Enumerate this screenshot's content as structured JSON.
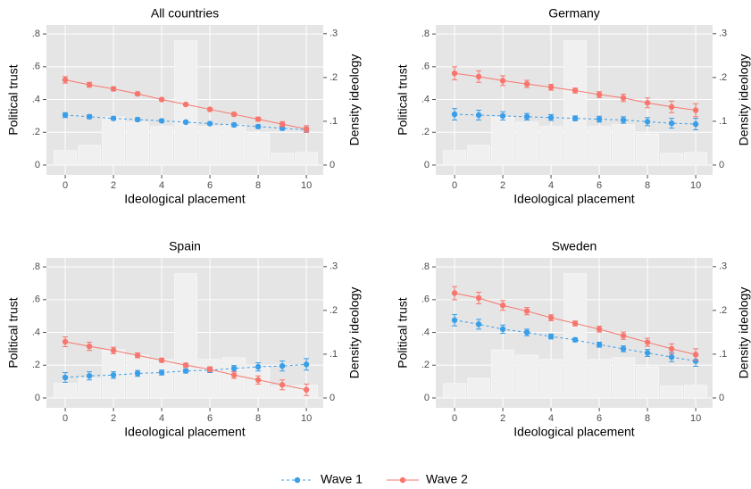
{
  "chart_data": [
    {
      "type": "line",
      "title": "All countries",
      "ylabel": "Political trust",
      "y2label": "Density ideology",
      "xlabel": "Ideological placement",
      "x": [
        0,
        1,
        2,
        3,
        4,
        5,
        6,
        7,
        8,
        9,
        10
      ],
      "xlim": [
        -0.78,
        10.7
      ],
      "xticks": [
        0,
        2,
        4,
        6,
        8,
        10
      ],
      "ylim": [
        -0.06,
        0.855
      ],
      "yticks": [
        0,
        {
          "value": 0.2,
          "label": ".2"
        },
        {
          "value": 0.4,
          "label": ".4"
        },
        {
          "value": 0.6,
          "label": ".6"
        },
        {
          "value": 0.8,
          "label": ".8"
        }
      ],
      "y2lim": [
        -0.0225,
        0.32
      ],
      "y2ticks": [
        0,
        {
          "value": 0.1,
          "label": ".1"
        },
        {
          "value": 0.2,
          "label": ".2"
        },
        {
          "value": 0.3,
          "label": ".3"
        }
      ],
      "grid": true,
      "density": {
        "axis": "y2",
        "color": "#f0f0f0",
        "bins": [
          -0.5,
          0.5,
          1.5,
          2.5,
          3.5,
          4.5,
          5.5,
          6.5,
          7.5,
          8.5,
          9.5,
          10.5
        ],
        "values": [
          0.033,
          0.045,
          0.11,
          0.098,
          0.088,
          0.284,
          0.088,
          0.092,
          0.071,
          0.027,
          0.029
        ]
      },
      "series": [
        {
          "name": "Wave 1",
          "color": "#3a9ee8",
          "dashed": true,
          "values": [
            0.305,
            0.295,
            0.285,
            0.278,
            0.27,
            0.262,
            0.253,
            0.245,
            0.235,
            0.225,
            0.215
          ],
          "errors": [
            0.015,
            0.012,
            0.01,
            0.01,
            0.008,
            0.007,
            0.008,
            0.01,
            0.01,
            0.012,
            0.015
          ]
        },
        {
          "name": "Wave 2",
          "color": "#f8766d",
          "dashed": false,
          "values": [
            0.52,
            0.49,
            0.465,
            0.435,
            0.4,
            0.37,
            0.34,
            0.31,
            0.28,
            0.25,
            0.22
          ],
          "errors": [
            0.02,
            0.015,
            0.012,
            0.01,
            0.008,
            0.007,
            0.008,
            0.01,
            0.012,
            0.015,
            0.02
          ]
        }
      ]
    },
    {
      "type": "line",
      "title": "Germany",
      "ylabel": "Political trust",
      "y2label": "Density ideology",
      "xlabel": "Ideological placement",
      "x": [
        0,
        1,
        2,
        3,
        4,
        5,
        6,
        7,
        8,
        9,
        10
      ],
      "xlim": [
        -0.78,
        10.7
      ],
      "xticks": [
        0,
        2,
        4,
        6,
        8,
        10
      ],
      "ylim": [
        -0.06,
        0.855
      ],
      "yticks": [
        0,
        {
          "value": 0.2,
          "label": ".2"
        },
        {
          "value": 0.4,
          "label": ".4"
        },
        {
          "value": 0.6,
          "label": ".6"
        },
        {
          "value": 0.8,
          "label": ".8"
        }
      ],
      "y2lim": [
        -0.0225,
        0.32
      ],
      "y2ticks": [
        0,
        {
          "value": 0.1,
          "label": ".1"
        },
        {
          "value": 0.2,
          "label": ".2"
        },
        {
          "value": 0.3,
          "label": ".3"
        }
      ],
      "grid": true,
      "density": {
        "axis": "y2",
        "color": "#f0f0f0",
        "bins": [
          -0.5,
          0.5,
          1.5,
          2.5,
          3.5,
          4.5,
          5.5,
          6.5,
          7.5,
          8.5,
          9.5,
          10.5
        ],
        "values": [
          0.033,
          0.045,
          0.11,
          0.098,
          0.088,
          0.284,
          0.088,
          0.092,
          0.071,
          0.027,
          0.029
        ]
      },
      "series": [
        {
          "name": "Wave 1",
          "color": "#3a9ee8",
          "dashed": true,
          "values": [
            0.31,
            0.305,
            0.3,
            0.295,
            0.29,
            0.285,
            0.28,
            0.275,
            0.265,
            0.255,
            0.25
          ],
          "errors": [
            0.035,
            0.03,
            0.025,
            0.02,
            0.018,
            0.015,
            0.018,
            0.02,
            0.025,
            0.03,
            0.035
          ]
        },
        {
          "name": "Wave 2",
          "color": "#f8766d",
          "dashed": false,
          "values": [
            0.56,
            0.54,
            0.515,
            0.495,
            0.475,
            0.455,
            0.43,
            0.41,
            0.38,
            0.355,
            0.335
          ],
          "errors": [
            0.04,
            0.035,
            0.03,
            0.022,
            0.018,
            0.015,
            0.018,
            0.022,
            0.03,
            0.035,
            0.04
          ]
        }
      ]
    },
    {
      "type": "line",
      "title": "Spain",
      "ylabel": "Political trust",
      "y2label": "Density ideology",
      "xlabel": "Ideological placement",
      "x": [
        0,
        1,
        2,
        3,
        4,
        5,
        6,
        7,
        8,
        9,
        10
      ],
      "xlim": [
        -0.78,
        10.7
      ],
      "xticks": [
        0,
        2,
        4,
        6,
        8,
        10
      ],
      "ylim": [
        -0.06,
        0.855
      ],
      "yticks": [
        0,
        {
          "value": 0.2,
          "label": ".2"
        },
        {
          "value": 0.4,
          "label": ".4"
        },
        {
          "value": 0.6,
          "label": ".6"
        },
        {
          "value": 0.8,
          "label": ".8"
        }
      ],
      "y2lim": [
        -0.0225,
        0.32
      ],
      "y2ticks": [
        0,
        {
          "value": 0.1,
          "label": ".1"
        },
        {
          "value": 0.2,
          "label": ".2"
        },
        {
          "value": 0.3,
          "label": ".3"
        }
      ],
      "grid": true,
      "density": {
        "axis": "y2",
        "color": "#f0f0f0",
        "bins": [
          -0.5,
          0.5,
          1.5,
          2.5,
          3.5,
          4.5,
          5.5,
          6.5,
          7.5,
          8.5,
          9.5,
          10.5
        ],
        "values": [
          0.033,
          0.045,
          0.11,
          0.098,
          0.088,
          0.284,
          0.088,
          0.092,
          0.071,
          0.027,
          0.029
        ]
      },
      "series": [
        {
          "name": "Wave 1",
          "color": "#3a9ee8",
          "dashed": true,
          "values": [
            0.125,
            0.135,
            0.14,
            0.15,
            0.155,
            0.165,
            0.17,
            0.18,
            0.19,
            0.195,
            0.205
          ],
          "errors": [
            0.03,
            0.025,
            0.02,
            0.018,
            0.015,
            0.012,
            0.015,
            0.018,
            0.025,
            0.03,
            0.035
          ]
        },
        {
          "name": "Wave 2",
          "color": "#f8766d",
          "dashed": false,
          "values": [
            0.343,
            0.315,
            0.29,
            0.26,
            0.23,
            0.2,
            0.175,
            0.14,
            0.11,
            0.08,
            0.05
          ],
          "errors": [
            0.03,
            0.025,
            0.02,
            0.015,
            0.012,
            0.012,
            0.015,
            0.02,
            0.025,
            0.03,
            0.035
          ]
        }
      ]
    },
    {
      "type": "line",
      "title": "Sweden",
      "ylabel": "Political trust",
      "y2label": "Density ideology",
      "xlabel": "Ideological placement",
      "x": [
        0,
        1,
        2,
        3,
        4,
        5,
        6,
        7,
        8,
        9,
        10
      ],
      "xlim": [
        -0.78,
        10.7
      ],
      "xticks": [
        0,
        2,
        4,
        6,
        8,
        10
      ],
      "ylim": [
        -0.06,
        0.855
      ],
      "yticks": [
        0,
        {
          "value": 0.2,
          "label": ".2"
        },
        {
          "value": 0.4,
          "label": ".4"
        },
        {
          "value": 0.6,
          "label": ".6"
        },
        {
          "value": 0.8,
          "label": ".8"
        }
      ],
      "y2lim": [
        -0.0225,
        0.32
      ],
      "y2ticks": [
        0,
        {
          "value": 0.1,
          "label": ".1"
        },
        {
          "value": 0.2,
          "label": ".2"
        },
        {
          "value": 0.3,
          "label": ".3"
        }
      ],
      "grid": true,
      "density": {
        "axis": "y2",
        "color": "#f0f0f0",
        "bins": [
          -0.5,
          0.5,
          1.5,
          2.5,
          3.5,
          4.5,
          5.5,
          6.5,
          7.5,
          8.5,
          9.5,
          10.5
        ],
        "values": [
          0.033,
          0.045,
          0.11,
          0.098,
          0.088,
          0.284,
          0.088,
          0.092,
          0.071,
          0.027,
          0.029
        ]
      },
      "series": [
        {
          "name": "Wave 1",
          "color": "#3a9ee8",
          "dashed": true,
          "values": [
            0.475,
            0.45,
            0.42,
            0.4,
            0.375,
            0.355,
            0.325,
            0.3,
            0.275,
            0.25,
            0.225
          ],
          "errors": [
            0.035,
            0.03,
            0.025,
            0.02,
            0.015,
            0.012,
            0.015,
            0.018,
            0.022,
            0.028,
            0.032
          ]
        },
        {
          "name": "Wave 2",
          "color": "#f8766d",
          "dashed": false,
          "values": [
            0.64,
            0.61,
            0.565,
            0.53,
            0.49,
            0.455,
            0.42,
            0.38,
            0.34,
            0.3,
            0.265
          ],
          "errors": [
            0.04,
            0.035,
            0.03,
            0.022,
            0.018,
            0.015,
            0.018,
            0.022,
            0.025,
            0.03,
            0.035
          ]
        }
      ]
    }
  ]
}
